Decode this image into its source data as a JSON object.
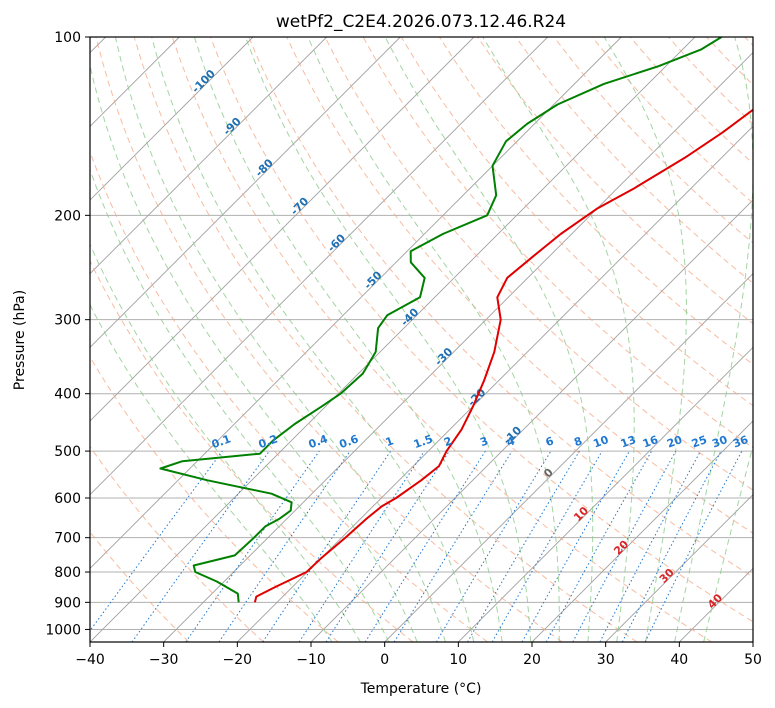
{
  "chart_data": {
    "type": "line",
    "title": "wetPf2_C2E4.2026.073.12.46.R24",
    "xlabel": "Temperature (°C)",
    "ylabel": "Pressure (hPa)",
    "xlim": [
      -40,
      50
    ],
    "ylim": [
      1050,
      100
    ],
    "y_scale": "log",
    "x_ticks": [
      -40,
      -30,
      -20,
      -10,
      0,
      10,
      20,
      30,
      40,
      50
    ],
    "y_ticks": [
      100,
      200,
      300,
      400,
      500,
      600,
      700,
      800,
      900,
      1000
    ],
    "grid": true,
    "skew": true,
    "colors": {
      "temperature": "#e00000",
      "dewpoint": "#008000",
      "isotherm": "#a0a0a0",
      "dry_adiabat": "#f4a582",
      "moist_adiabat": "#8cc98c",
      "mixing_ratio": "#1f78d0",
      "label_blue": "#1f6fb2",
      "label_red": "#d62728",
      "label_gray": "#666666",
      "border": "#000000"
    },
    "series": [
      {
        "key": "temperature",
        "points": [
          {
            "p": 900,
            "t": -23.0
          },
          {
            "p": 880,
            "t": -23.6
          },
          {
            "p": 850,
            "t": -22.4
          },
          {
            "p": 800,
            "t": -20.1
          },
          {
            "p": 760,
            "t": -20.0
          },
          {
            "p": 700,
            "t": -19.5
          },
          {
            "p": 650,
            "t": -19.2
          },
          {
            "p": 620,
            "t": -18.8
          },
          {
            "p": 600,
            "t": -18.0
          },
          {
            "p": 560,
            "t": -17.0
          },
          {
            "p": 530,
            "t": -16.5
          },
          {
            "p": 500,
            "t": -17.5
          },
          {
            "p": 460,
            "t": -18.4
          },
          {
            "p": 420,
            "t": -20.0
          },
          {
            "p": 380,
            "t": -22.0
          },
          {
            "p": 340,
            "t": -24.5
          },
          {
            "p": 300,
            "t": -28.0
          },
          {
            "p": 275,
            "t": -31.5
          },
          {
            "p": 255,
            "t": -32.8
          },
          {
            "p": 235,
            "t": -32.2
          },
          {
            "p": 215,
            "t": -31.5
          },
          {
            "p": 195,
            "t": -30.0
          },
          {
            "p": 180,
            "t": -27.7
          },
          {
            "p": 160,
            "t": -25.0
          },
          {
            "p": 145,
            "t": -23.3
          },
          {
            "p": 130,
            "t": -22.0
          },
          {
            "p": 120,
            "t": -21.6
          },
          {
            "p": 110,
            "t": -19.9
          },
          {
            "p": 100,
            "t": -16.8
          }
        ]
      },
      {
        "key": "dewpoint",
        "points": [
          {
            "p": 900,
            "t": -25.2
          },
          {
            "p": 870,
            "t": -26.5
          },
          {
            "p": 830,
            "t": -31.0
          },
          {
            "p": 800,
            "t": -35.2
          },
          {
            "p": 780,
            "t": -36.3
          },
          {
            "p": 750,
            "t": -32.1
          },
          {
            "p": 700,
            "t": -31.9
          },
          {
            "p": 670,
            "t": -31.9
          },
          {
            "p": 650,
            "t": -31.0
          },
          {
            "p": 630,
            "t": -30.6
          },
          {
            "p": 610,
            "t": -31.6
          },
          {
            "p": 590,
            "t": -35.5
          },
          {
            "p": 560,
            "t": -46.0
          },
          {
            "p": 535,
            "t": -54.0
          },
          {
            "p": 520,
            "t": -52.0
          },
          {
            "p": 505,
            "t": -42.5
          },
          {
            "p": 480,
            "t": -42.5
          },
          {
            "p": 450,
            "t": -41.8
          },
          {
            "p": 420,
            "t": -40.5
          },
          {
            "p": 400,
            "t": -39.7
          },
          {
            "p": 370,
            "t": -39.4
          },
          {
            "p": 340,
            "t": -40.6
          },
          {
            "p": 310,
            "t": -43.5
          },
          {
            "p": 295,
            "t": -44.0
          },
          {
            "p": 275,
            "t": -42.0
          },
          {
            "p": 255,
            "t": -44.0
          },
          {
            "p": 240,
            "t": -48.0
          },
          {
            "p": 230,
            "t": -49.5
          },
          {
            "p": 215,
            "t": -47.5
          },
          {
            "p": 200,
            "t": -44.0
          },
          {
            "p": 185,
            "t": -45.5
          },
          {
            "p": 165,
            "t": -50.0
          },
          {
            "p": 150,
            "t": -51.5
          },
          {
            "p": 140,
            "t": -51.0
          },
          {
            "p": 130,
            "t": -49.5
          },
          {
            "p": 120,
            "t": -46.0
          },
          {
            "p": 112,
            "t": -41.0
          },
          {
            "p": 105,
            "t": -37.5
          },
          {
            "p": 100,
            "t": -36.4
          }
        ]
      }
    ],
    "dry_adiabat_labels": [
      {
        "text": "-100",
        "t": -100,
        "p": 120
      },
      {
        "text": "-90",
        "t": -90,
        "p": 143
      },
      {
        "text": "-80",
        "t": -80,
        "p": 168
      },
      {
        "text": "-70",
        "t": -70,
        "p": 195
      },
      {
        "text": "-60",
        "t": -60,
        "p": 225
      },
      {
        "text": "-50",
        "t": -50,
        "p": 260
      },
      {
        "text": "-40",
        "t": -40,
        "p": 300
      },
      {
        "text": "-30",
        "t": -30,
        "p": 350
      },
      {
        "text": "-20",
        "t": -20,
        "p": 410
      },
      {
        "text": "-10",
        "t": -10,
        "p": 475
      }
    ],
    "moist_adiabat_labels": [
      {
        "text": "0",
        "t": 0,
        "p": 550,
        "color": "gray"
      },
      {
        "text": "10",
        "t": 10,
        "p": 645,
        "color": "red"
      },
      {
        "text": "20",
        "t": 20,
        "p": 735,
        "color": "red"
      },
      {
        "text": "30",
        "t": 30,
        "p": 820,
        "color": "red"
      },
      {
        "text": "40",
        "t": 40,
        "p": 905,
        "color": "red"
      }
    ],
    "mixing_ratio_labels": [
      "0.1",
      "0.2",
      "0.4",
      "0.6",
      "1",
      "1.5",
      "2",
      "3",
      "4",
      "6",
      "8",
      "10",
      "13",
      "16",
      "20",
      "25",
      "30",
      "36"
    ]
  }
}
